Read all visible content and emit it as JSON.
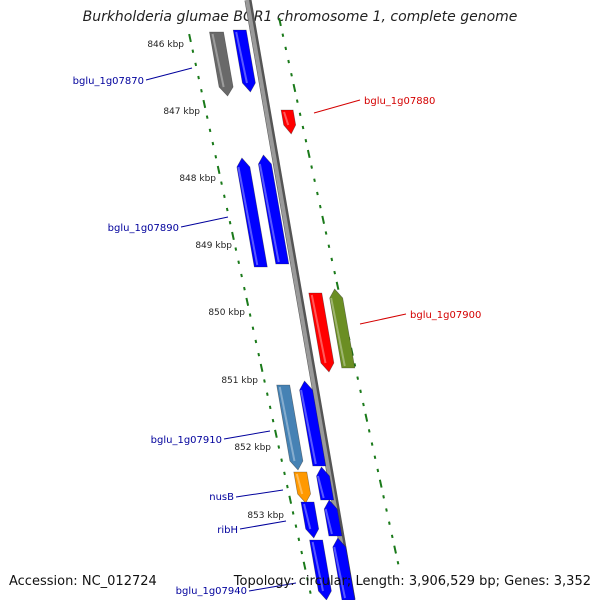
{
  "title": "Burkholderia glumae BGR1 chromosome 1, complete genome",
  "footer": {
    "accession_label": "Accession:",
    "accession": "NC_012724",
    "topology_label": "Topology:",
    "topology": "circular",
    "length_label": "Length:",
    "length": "3,906,529 bp",
    "genes_label": "Genes:",
    "genes": "3,352"
  },
  "colors": {
    "backbone": "#808080",
    "tick": "#1a7a1a",
    "cds_blue": "#0000ff",
    "cds_red": "#ff0000",
    "cds_olive": "#6b8e23",
    "cds_steel": "#4682b4",
    "cds_orange": "#ff9900",
    "cds_gray": "#696969",
    "label_blue": "#00009c",
    "label_red": "#d40000"
  },
  "ticks": [
    "846 kbp",
    "847 kbp",
    "848 kbp",
    "849 kbp",
    "850 kbp",
    "851 kbp",
    "852 kbp",
    "853 kbp"
  ],
  "gene_labels": [
    {
      "text": "bglu_1g07870",
      "color": "label_blue"
    },
    {
      "text": "bglu_1g07880",
      "color": "label_red"
    },
    {
      "text": "bglu_1g07890",
      "color": "label_blue"
    },
    {
      "text": "bglu_1g07900",
      "color": "label_red"
    },
    {
      "text": "bglu_1g07910",
      "color": "label_blue"
    },
    {
      "text": "nusB",
      "color": "label_blue"
    },
    {
      "text": "ribH",
      "color": "label_blue"
    },
    {
      "text": "bglu_1g07940",
      "color": "label_blue"
    }
  ]
}
